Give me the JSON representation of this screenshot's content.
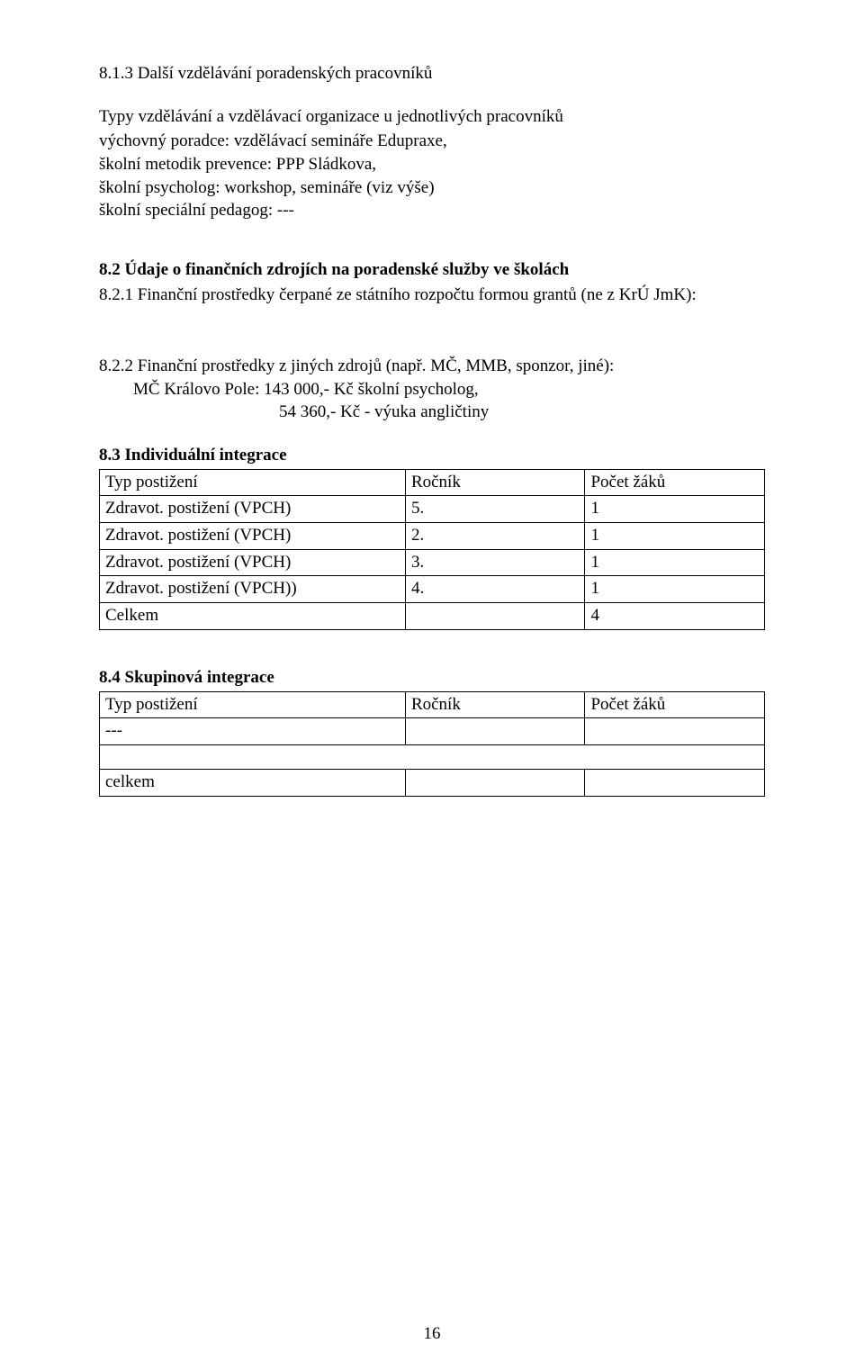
{
  "colors": {
    "text": "#000000",
    "background": "#ffffff",
    "table_border": "#000000"
  },
  "typography": {
    "font_family": "Times New Roman",
    "body_fontsize_pt": 12
  },
  "s813": {
    "title": "8.1.3  Další vzdělávání poradenských pracovníků",
    "sub": "Typy vzdělávání a vzdělávací organizace u jednotlivých pracovníků",
    "lines": [
      "výchovný poradce: vzdělávací semináře Edupraxe,",
      "školní metodik prevence: PPP Sládkova,",
      "školní psycholog: workshop, semináře (viz výše)",
      "školní speciální pedagog: ---"
    ]
  },
  "s82": {
    "title": "8.2 Údaje o finančních zdrojích na poradenské služby ve školách",
    "s821": "8.2.1   Finanční prostředky čerpané ze státního rozpočtu formou grantů (ne z KrÚ JmK):",
    "s822": "8.2.2   Finanční prostředky z jiných zdrojů (např. MČ, MMB, sponzor, jiné):",
    "line1": "MČ Královo Pole: 143 000,- Kč      školní psycholog,",
    "line2": "54 360,- Kč  - výuka angličtiny"
  },
  "s83": {
    "title": "8.3 Individuální integrace",
    "headers": [
      "Typ postižení",
      "Ročník",
      "Počet žáků"
    ],
    "rows": [
      [
        "Zdravot. postižení (VPCH)",
        "5.",
        "1"
      ],
      [
        "Zdravot. postižení (VPCH)",
        "2.",
        "1"
      ],
      [
        "Zdravot. postižení (VPCH)",
        "3.",
        "1"
      ],
      [
        "Zdravot. postižení (VPCH))",
        "4.",
        "1"
      ]
    ],
    "total_label": "Celkem",
    "total_value": "4",
    "col_widths_pct": [
      46,
      27,
      27
    ]
  },
  "s84": {
    "title": "8.4  Skupinová integrace",
    "headers": [
      "Typ postižení",
      "Ročník",
      "Počet žáků"
    ],
    "row1": "---",
    "total_label": "celkem",
    "col_widths_pct": [
      46,
      27,
      27
    ]
  },
  "page_number": "16"
}
